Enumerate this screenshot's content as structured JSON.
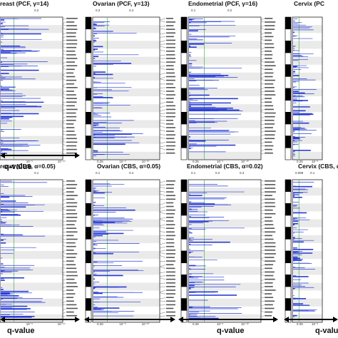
{
  "panels": [
    {
      "id": "breast-pcf",
      "title": "reast (PCF, γ=14)",
      "top_ticks": [
        "0.2"
      ],
      "bottom_ticks": [
        "10⁻⁵",
        "10⁻¹⁰"
      ]
    },
    {
      "id": "ovarian-pcf",
      "title": "Ovarian (PCF, γ=13)",
      "top_ticks": [
        "0.2",
        "0.4"
      ],
      "bottom_ticks": [
        "0.25",
        "10⁻⁵",
        "10⁻¹⁰"
      ]
    },
    {
      "id": "endometrial-pcf",
      "title": "Endometrial (PCF, γ=16)",
      "top_ticks": [
        "0.1",
        "0.2"
      ],
      "bottom_ticks": [
        "0.25",
        "10⁻⁵",
        "10⁻¹⁰"
      ]
    },
    {
      "id": "cervix-pcf",
      "title": "Cervix (PC",
      "top_ticks": [],
      "bottom_ticks": [
        "0.25",
        "10⁻⁵"
      ]
    },
    {
      "id": "breast-cbs",
      "title": "reast (CBS, α=0.05)",
      "top_ticks": [
        "0.1"
      ],
      "bottom_ticks": [
        "10⁻⁵",
        "10⁻¹⁰"
      ]
    },
    {
      "id": "ovarian-cbs",
      "title": "Ovarian (CBS, α=0.05)",
      "top_ticks": [
        "0.1",
        "0.4"
      ],
      "bottom_ticks": [
        "0.25",
        "10⁻⁵",
        "10⁻¹⁰"
      ]
    },
    {
      "id": "endometrial-cbs",
      "title": "Endometrial (CBS, α=0.02)",
      "top_ticks": [
        "0.1",
        "0.2",
        "0.3"
      ],
      "bottom_ticks": [
        "0.25",
        "10⁻⁵",
        "10⁻¹⁰"
      ]
    },
    {
      "id": "cervix-cbs",
      "title": "Cervix (CBS, α",
      "top_ticks": [
        "0.099",
        "0.1"
      ],
      "bottom_ticks": [
        "0.25",
        "10⁻⁵"
      ]
    }
  ],
  "axis_label": "q-value",
  "colors": {
    "bars": "#2a3fd6",
    "threshold": "#4caf50",
    "bands": "#d9d9d9"
  }
}
